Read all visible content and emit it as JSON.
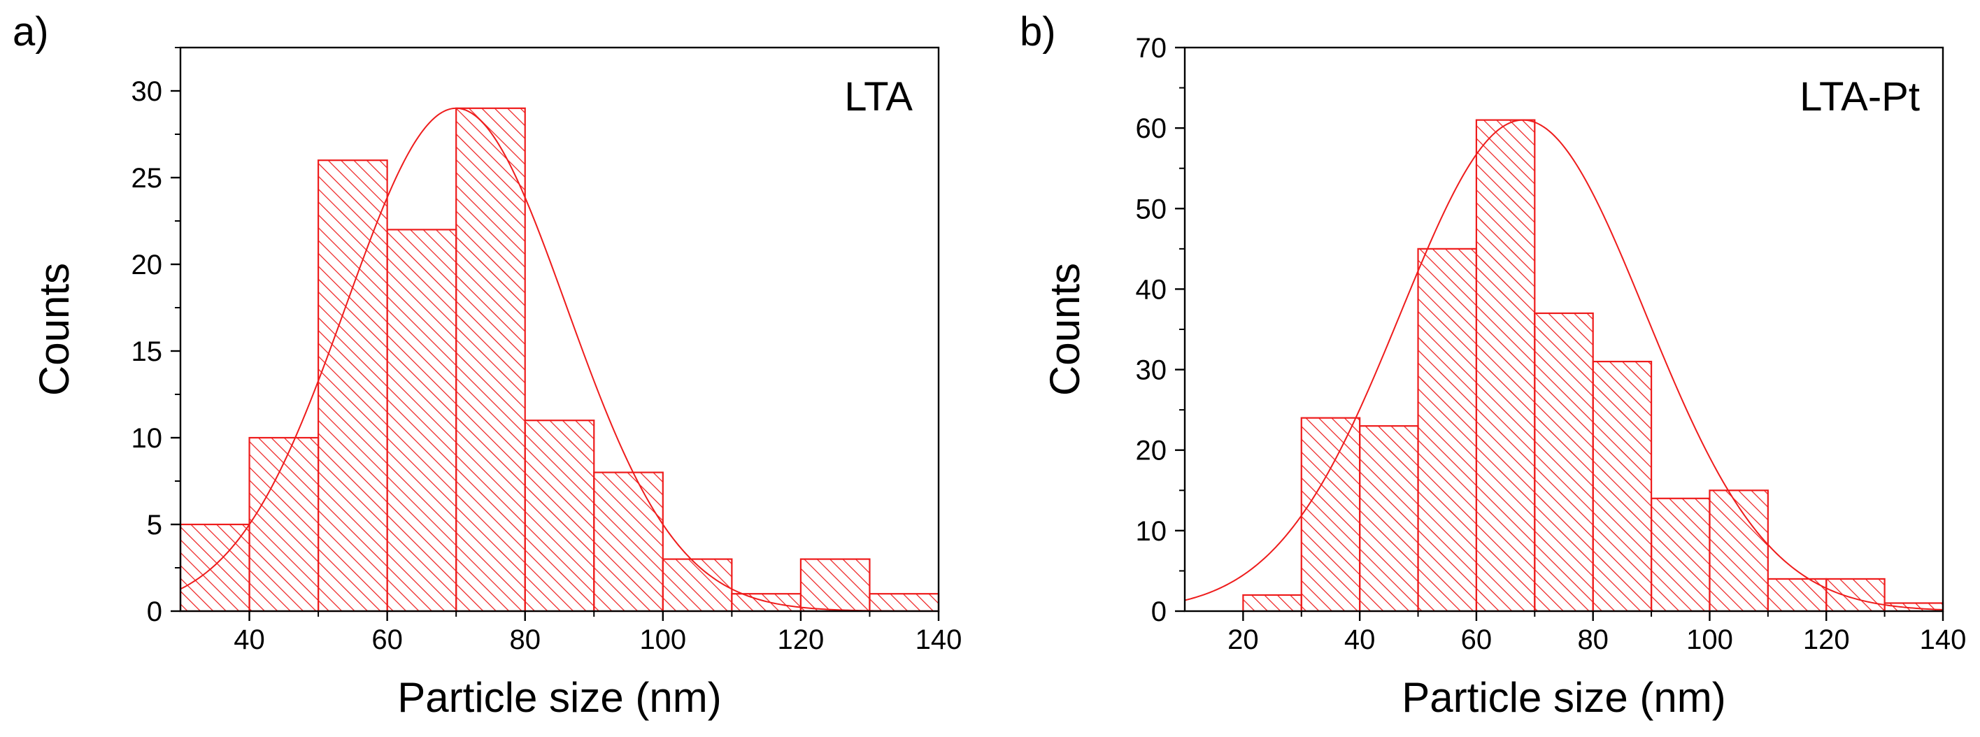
{
  "figure": {
    "panel_count": 2
  },
  "colors": {
    "bar_edge": "#ee1c1c",
    "hatch": "#ee1c1c",
    "fit_curve": "#ee1c1c",
    "axis": "#000000",
    "background": "#ffffff"
  },
  "chart_data": [
    {
      "type": "bar",
      "panel_label": "a)",
      "title": "LTA",
      "xlabel": "Particle size (nm)",
      "ylabel": "Counts",
      "xlim": [
        30,
        140
      ],
      "ylim": [
        0,
        32.5
      ],
      "bin_width": 10,
      "x_ticks": [
        40,
        60,
        80,
        100,
        120,
        140
      ],
      "x_minor_ticks": [
        50,
        70,
        90,
        110,
        130
      ],
      "y_ticks": [
        0,
        5,
        10,
        15,
        20,
        25,
        30
      ],
      "y_minor_ticks": [
        2.5,
        7.5,
        12.5,
        17.5,
        22.5,
        27.5,
        32.5
      ],
      "bins": [
        {
          "start": 30,
          "end": 40,
          "count": 5
        },
        {
          "start": 40,
          "end": 50,
          "count": 10
        },
        {
          "start": 50,
          "end": 60,
          "count": 26
        },
        {
          "start": 60,
          "end": 70,
          "count": 22
        },
        {
          "start": 70,
          "end": 80,
          "count": 29
        },
        {
          "start": 80,
          "end": 90,
          "count": 11
        },
        {
          "start": 90,
          "end": 100,
          "count": 8
        },
        {
          "start": 100,
          "end": 110,
          "count": 3
        },
        {
          "start": 110,
          "end": 120,
          "count": 1
        },
        {
          "start": 120,
          "end": 130,
          "count": 3
        },
        {
          "start": 130,
          "end": 140,
          "count": 1
        }
      ],
      "fit": {
        "type": "gaussian",
        "peak_x": 70,
        "peak_y": 29,
        "sigma": 16
      }
    },
    {
      "type": "bar",
      "panel_label": "b)",
      "title": "LTA-Pt",
      "xlabel": "Particle size (nm)",
      "ylabel": "Counts",
      "xlim": [
        10,
        140
      ],
      "ylim": [
        0,
        70
      ],
      "bin_width": 10,
      "x_ticks": [
        20,
        40,
        60,
        80,
        100,
        120,
        140
      ],
      "x_minor_ticks": [
        30,
        50,
        70,
        90,
        110,
        130
      ],
      "y_ticks": [
        0,
        10,
        20,
        30,
        40,
        50,
        60,
        70
      ],
      "y_minor_ticks": [
        5,
        15,
        25,
        35,
        45,
        55,
        65
      ],
      "bins": [
        {
          "start": 20,
          "end": 30,
          "count": 2
        },
        {
          "start": 30,
          "end": 40,
          "count": 24
        },
        {
          "start": 40,
          "end": 50,
          "count": 23
        },
        {
          "start": 50,
          "end": 60,
          "count": 45
        },
        {
          "start": 60,
          "end": 70,
          "count": 61
        },
        {
          "start": 70,
          "end": 80,
          "count": 37
        },
        {
          "start": 80,
          "end": 90,
          "count": 31
        },
        {
          "start": 90,
          "end": 100,
          "count": 14
        },
        {
          "start": 100,
          "end": 110,
          "count": 15
        },
        {
          "start": 110,
          "end": 120,
          "count": 4
        },
        {
          "start": 120,
          "end": 130,
          "count": 4
        },
        {
          "start": 130,
          "end": 140,
          "count": 1
        }
      ],
      "fit": {
        "type": "gaussian",
        "peak_x": 68,
        "peak_y": 61,
        "sigma": 21
      }
    }
  ]
}
